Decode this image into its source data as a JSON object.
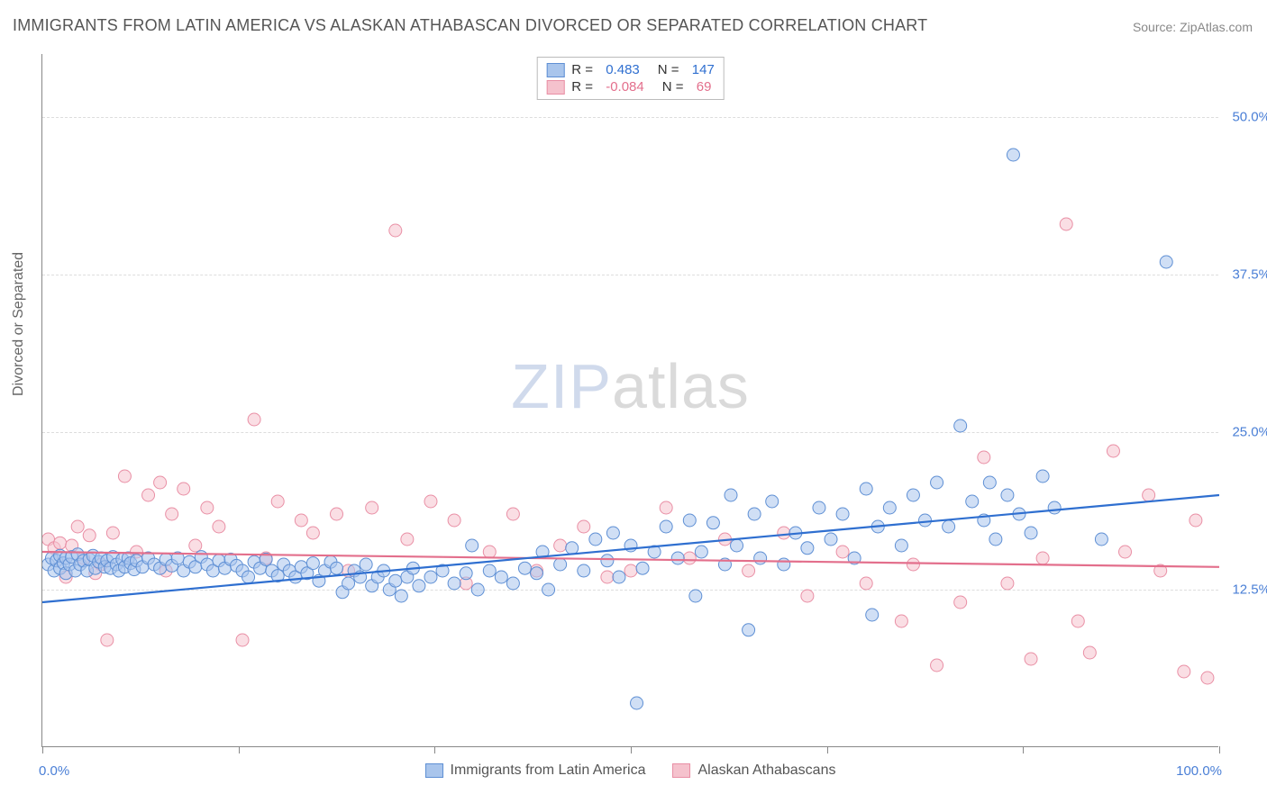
{
  "title": "IMMIGRANTS FROM LATIN AMERICA VS ALASKAN ATHABASCAN DIVORCED OR SEPARATED CORRELATION CHART",
  "source_label": "Source: ",
  "source_name": "ZipAtlas.com",
  "y_axis_label": "Divorced or Separated",
  "watermark": {
    "part1": "ZIP",
    "part2": "atlas"
  },
  "chart": {
    "type": "scatter",
    "background_color": "#ffffff",
    "grid_color": "#dddddd",
    "axis_color": "#888888",
    "xlim": [
      0,
      100
    ],
    "ylim": [
      0,
      55
    ],
    "x_ticks": [
      0,
      16.67,
      33.33,
      50,
      66.67,
      83.33,
      100
    ],
    "x_tick_labels": {
      "0": "0.0%",
      "100": "100.0%"
    },
    "y_gridlines": [
      12.5,
      25.0,
      37.5,
      50.0
    ],
    "y_tick_labels": [
      "12.5%",
      "25.0%",
      "37.5%",
      "50.0%"
    ],
    "tick_label_color": "#4a7fd6",
    "label_color": "#666666",
    "label_fontsize": 16,
    "tick_fontsize": 15,
    "marker_radius": 7,
    "marker_opacity": 0.55,
    "line_width": 2.2
  },
  "series": [
    {
      "name": "Immigrants from Latin America",
      "color_fill": "#a9c5ec",
      "color_stroke": "#5e8fd4",
      "line_color": "#2f6fd0",
      "R": "0.483",
      "N": "147",
      "trend": {
        "x1": 0,
        "y1": 11.5,
        "x2": 100,
        "y2": 20.0
      },
      "points": [
        [
          0.5,
          14.5
        ],
        [
          0.8,
          15.0
        ],
        [
          1.0,
          14.0
        ],
        [
          1.2,
          14.8
        ],
        [
          1.5,
          15.2
        ],
        [
          1.5,
          14.2
        ],
        [
          1.8,
          14.6
        ],
        [
          2.0,
          15.0
        ],
        [
          2.0,
          13.8
        ],
        [
          2.3,
          14.5
        ],
        [
          2.5,
          15.1
        ],
        [
          2.8,
          14.0
        ],
        [
          3.0,
          15.3
        ],
        [
          3.2,
          14.5
        ],
        [
          3.5,
          14.8
        ],
        [
          3.8,
          14.0
        ],
        [
          4.0,
          14.9
        ],
        [
          4.3,
          15.2
        ],
        [
          4.5,
          14.2
        ],
        [
          4.8,
          14.7
        ],
        [
          5.0,
          15.0
        ],
        [
          5.3,
          14.3
        ],
        [
          5.5,
          14.8
        ],
        [
          5.8,
          14.2
        ],
        [
          6.0,
          15.1
        ],
        [
          6.3,
          14.5
        ],
        [
          6.5,
          14.0
        ],
        [
          6.8,
          14.9
        ],
        [
          7.0,
          14.3
        ],
        [
          7.3,
          15.0
        ],
        [
          7.5,
          14.6
        ],
        [
          7.8,
          14.1
        ],
        [
          8.0,
          14.8
        ],
        [
          8.5,
          14.3
        ],
        [
          9.0,
          15.0
        ],
        [
          9.5,
          14.5
        ],
        [
          10.0,
          14.2
        ],
        [
          10.5,
          14.9
        ],
        [
          11.0,
          14.4
        ],
        [
          11.5,
          15.0
        ],
        [
          12.0,
          14.0
        ],
        [
          12.5,
          14.7
        ],
        [
          13.0,
          14.3
        ],
        [
          13.5,
          15.1
        ],
        [
          14.0,
          14.5
        ],
        [
          14.5,
          14.0
        ],
        [
          15.0,
          14.8
        ],
        [
          15.5,
          14.2
        ],
        [
          16.0,
          14.9
        ],
        [
          16.5,
          14.4
        ],
        [
          17.0,
          14.0
        ],
        [
          17.5,
          13.5
        ],
        [
          18.0,
          14.7
        ],
        [
          18.5,
          14.2
        ],
        [
          19.0,
          14.9
        ],
        [
          19.5,
          14.0
        ],
        [
          20.0,
          13.6
        ],
        [
          20.5,
          14.5
        ],
        [
          21.0,
          14.0
        ],
        [
          21.5,
          13.5
        ],
        [
          22.0,
          14.3
        ],
        [
          22.5,
          13.8
        ],
        [
          23.0,
          14.6
        ],
        [
          23.5,
          13.2
        ],
        [
          24.0,
          14.0
        ],
        [
          24.5,
          14.7
        ],
        [
          25.0,
          14.2
        ],
        [
          25.5,
          12.3
        ],
        [
          26.0,
          13.0
        ],
        [
          26.5,
          14.0
        ],
        [
          27.0,
          13.5
        ],
        [
          27.5,
          14.5
        ],
        [
          28.0,
          12.8
        ],
        [
          28.5,
          13.5
        ],
        [
          29.0,
          14.0
        ],
        [
          29.5,
          12.5
        ],
        [
          30.0,
          13.2
        ],
        [
          30.5,
          12.0
        ],
        [
          31.0,
          13.5
        ],
        [
          31.5,
          14.2
        ],
        [
          32.0,
          12.8
        ],
        [
          33.0,
          13.5
        ],
        [
          34.0,
          14.0
        ],
        [
          35.0,
          13.0
        ],
        [
          36.0,
          13.8
        ],
        [
          36.5,
          16.0
        ],
        [
          37.0,
          12.5
        ],
        [
          38.0,
          14.0
        ],
        [
          39.0,
          13.5
        ],
        [
          40.0,
          13.0
        ],
        [
          41.0,
          14.2
        ],
        [
          42.0,
          13.8
        ],
        [
          42.5,
          15.5
        ],
        [
          43.0,
          12.5
        ],
        [
          44.0,
          14.5
        ],
        [
          45.0,
          15.8
        ],
        [
          46.0,
          14.0
        ],
        [
          47.0,
          16.5
        ],
        [
          48.0,
          14.8
        ],
        [
          48.5,
          17.0
        ],
        [
          49.0,
          13.5
        ],
        [
          50.0,
          16.0
        ],
        [
          51.0,
          14.2
        ],
        [
          52.0,
          15.5
        ],
        [
          53.0,
          17.5
        ],
        [
          54.0,
          15.0
        ],
        [
          55.0,
          18.0
        ],
        [
          55.5,
          12.0
        ],
        [
          56.0,
          15.5
        ],
        [
          57.0,
          17.8
        ],
        [
          58.0,
          14.5
        ],
        [
          58.5,
          20.0
        ],
        [
          59.0,
          16.0
        ],
        [
          60.0,
          9.3
        ],
        [
          60.5,
          18.5
        ],
        [
          61.0,
          15.0
        ],
        [
          62.0,
          19.5
        ],
        [
          63.0,
          14.5
        ],
        [
          64.0,
          17.0
        ],
        [
          65.0,
          15.8
        ],
        [
          66.0,
          19.0
        ],
        [
          67.0,
          16.5
        ],
        [
          68.0,
          18.5
        ],
        [
          69.0,
          15.0
        ],
        [
          70.0,
          20.5
        ],
        [
          70.5,
          10.5
        ],
        [
          71.0,
          17.5
        ],
        [
          72.0,
          19.0
        ],
        [
          73.0,
          16.0
        ],
        [
          74.0,
          20.0
        ],
        [
          75.0,
          18.0
        ],
        [
          76.0,
          21.0
        ],
        [
          77.0,
          17.5
        ],
        [
          78.0,
          25.5
        ],
        [
          79.0,
          19.5
        ],
        [
          80.0,
          18.0
        ],
        [
          80.5,
          21.0
        ],
        [
          81.0,
          16.5
        ],
        [
          82.0,
          20.0
        ],
        [
          82.5,
          47.0
        ],
        [
          83.0,
          18.5
        ],
        [
          84.0,
          17.0
        ],
        [
          85.0,
          21.5
        ],
        [
          86.0,
          19.0
        ],
        [
          90.0,
          16.5
        ],
        [
          95.5,
          38.5
        ],
        [
          50.5,
          3.5
        ]
      ]
    },
    {
      "name": "Alaskan Athabascans",
      "color_fill": "#f5c2cd",
      "color_stroke": "#e98fa5",
      "line_color": "#e36f8c",
      "R": "-0.084",
      "N": "69",
      "trend": {
        "x1": 0,
        "y1": 15.5,
        "x2": 100,
        "y2": 14.3
      },
      "points": [
        [
          0.5,
          16.5
        ],
        [
          1.0,
          15.8
        ],
        [
          1.5,
          16.2
        ],
        [
          2.0,
          13.5
        ],
        [
          2.5,
          16.0
        ],
        [
          3.0,
          17.5
        ],
        [
          3.5,
          15.0
        ],
        [
          4.0,
          16.8
        ],
        [
          4.5,
          13.8
        ],
        [
          5.0,
          14.5
        ],
        [
          5.5,
          8.5
        ],
        [
          6.0,
          17.0
        ],
        [
          7.0,
          21.5
        ],
        [
          8.0,
          15.5
        ],
        [
          9.0,
          20.0
        ],
        [
          10.0,
          21.0
        ],
        [
          10.5,
          14.0
        ],
        [
          11.0,
          18.5
        ],
        [
          12.0,
          20.5
        ],
        [
          13.0,
          16.0
        ],
        [
          14.0,
          19.0
        ],
        [
          15.0,
          17.5
        ],
        [
          17.0,
          8.5
        ],
        [
          18.0,
          26.0
        ],
        [
          19.0,
          15.0
        ],
        [
          20.0,
          19.5
        ],
        [
          22.0,
          18.0
        ],
        [
          23.0,
          17.0
        ],
        [
          25.0,
          18.5
        ],
        [
          26.0,
          14.0
        ],
        [
          28.0,
          19.0
        ],
        [
          30.0,
          41.0
        ],
        [
          31.0,
          16.5
        ],
        [
          33.0,
          19.5
        ],
        [
          35.0,
          18.0
        ],
        [
          36.0,
          13.0
        ],
        [
          38.0,
          15.5
        ],
        [
          40.0,
          18.5
        ],
        [
          42.0,
          14.0
        ],
        [
          44.0,
          16.0
        ],
        [
          46.0,
          17.5
        ],
        [
          48.0,
          13.5
        ],
        [
          50.0,
          14.0
        ],
        [
          53.0,
          19.0
        ],
        [
          55.0,
          15.0
        ],
        [
          58.0,
          16.5
        ],
        [
          60.0,
          14.0
        ],
        [
          63.0,
          17.0
        ],
        [
          65.0,
          12.0
        ],
        [
          68.0,
          15.5
        ],
        [
          70.0,
          13.0
        ],
        [
          73.0,
          10.0
        ],
        [
          74.0,
          14.5
        ],
        [
          76.0,
          6.5
        ],
        [
          78.0,
          11.5
        ],
        [
          80.0,
          23.0
        ],
        [
          82.0,
          13.0
        ],
        [
          84.0,
          7.0
        ],
        [
          85.0,
          15.0
        ],
        [
          87.0,
          41.5
        ],
        [
          88.0,
          10.0
        ],
        [
          89.0,
          7.5
        ],
        [
          91.0,
          23.5
        ],
        [
          92.0,
          15.5
        ],
        [
          94.0,
          20.0
        ],
        [
          95.0,
          14.0
        ],
        [
          97.0,
          6.0
        ],
        [
          98.0,
          18.0
        ],
        [
          99.0,
          5.5
        ]
      ]
    }
  ],
  "legend_top": {
    "r_label": "R =",
    "n_label": "N ="
  },
  "legend_bottom_labels": [
    "Immigrants from Latin America",
    "Alaskan Athabascans"
  ]
}
